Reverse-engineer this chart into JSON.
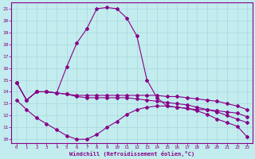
{
  "xlabel": "Windchill (Refroidissement éolien,°C)",
  "background_color": "#c2ecee",
  "grid_color": "#a8d8da",
  "line_color": "#880088",
  "xlim": [
    -0.5,
    23.5
  ],
  "ylim": [
    9.7,
    21.5
  ],
  "yticks": [
    10,
    11,
    12,
    13,
    14,
    15,
    16,
    17,
    18,
    19,
    20,
    21
  ],
  "xticks": [
    0,
    1,
    2,
    3,
    4,
    5,
    6,
    7,
    8,
    9,
    10,
    11,
    12,
    13,
    14,
    15,
    16,
    17,
    18,
    19,
    20,
    21,
    22,
    23
  ],
  "line1_x": [
    0,
    1,
    2,
    3,
    4,
    5,
    6,
    7,
    8,
    9,
    10,
    11,
    12,
    13,
    14,
    15,
    16,
    17,
    18,
    19,
    20,
    21,
    22,
    23
  ],
  "line1_y": [
    14.8,
    13.3,
    14.0,
    14.0,
    13.9,
    16.1,
    18.1,
    19.3,
    21.0,
    21.1,
    21.0,
    20.2,
    18.7,
    15.0,
    13.5,
    12.8,
    12.7,
    12.6,
    12.5,
    12.5,
    12.4,
    12.3,
    12.2,
    11.9
  ],
  "line2_x": [
    0,
    1,
    2,
    3,
    4,
    5,
    6,
    7,
    8,
    9,
    10,
    11,
    12,
    13,
    14,
    15,
    16,
    17,
    18,
    19,
    20,
    21,
    22,
    23
  ],
  "line2_y": [
    14.8,
    13.3,
    14.0,
    14.0,
    13.9,
    13.8,
    13.7,
    13.7,
    13.7,
    13.7,
    13.7,
    13.7,
    13.7,
    13.7,
    13.7,
    13.6,
    13.6,
    13.5,
    13.4,
    13.3,
    13.2,
    13.0,
    12.8,
    12.5
  ],
  "line3_x": [
    0,
    1,
    2,
    3,
    4,
    5,
    6,
    7,
    8,
    9,
    10,
    11,
    12,
    13,
    14,
    15,
    16,
    17,
    18,
    19,
    20,
    21,
    22,
    23
  ],
  "line3_y": [
    13.3,
    12.5,
    11.8,
    11.3,
    10.8,
    10.3,
    10.0,
    10.0,
    10.4,
    11.0,
    11.5,
    12.1,
    12.5,
    12.7,
    12.8,
    12.8,
    12.7,
    12.6,
    12.4,
    12.1,
    11.7,
    11.4,
    11.1,
    10.2
  ],
  "line4_x": [
    0,
    1,
    2,
    3,
    4,
    5,
    6,
    7,
    8,
    9,
    10,
    11,
    12,
    13,
    14,
    15,
    16,
    17,
    18,
    19,
    20,
    21,
    22,
    23
  ],
  "line4_y": [
    14.8,
    13.3,
    14.0,
    14.0,
    13.9,
    13.8,
    13.6,
    13.5,
    13.5,
    13.5,
    13.5,
    13.5,
    13.4,
    13.3,
    13.2,
    13.1,
    13.0,
    12.9,
    12.7,
    12.5,
    12.3,
    12.0,
    11.7,
    11.4
  ]
}
